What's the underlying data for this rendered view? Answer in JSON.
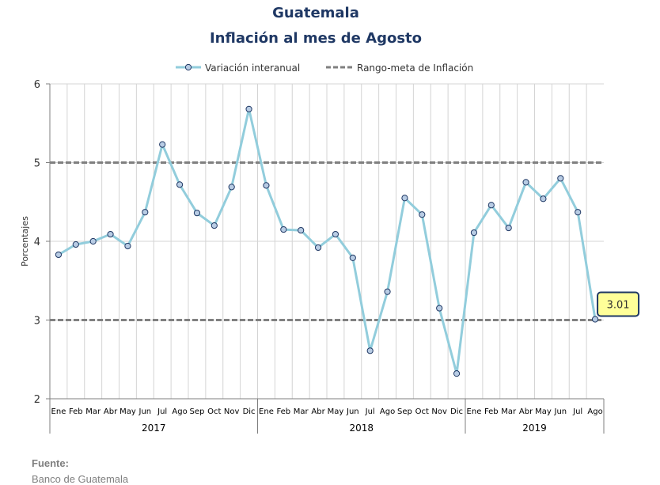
{
  "chart_data": {
    "type": "line",
    "title": "Guatemala",
    "subtitle": "Inflación al mes de Agosto",
    "ylabel": "Porcentajes",
    "xlabel": "",
    "ylim": [
      2,
      6
    ],
    "yticks": [
      "2",
      "3",
      "4",
      "5",
      "6"
    ],
    "grid": true,
    "legend_position": "top",
    "categories": [
      "Ene",
      "Feb",
      "Mar",
      "Abr",
      "May",
      "Jun",
      "Jul",
      "Ago",
      "Sep",
      "Oct",
      "Nov",
      "Dic",
      "Ene",
      "Feb",
      "Mar",
      "Abr",
      "May",
      "Jun",
      "Jul",
      "Ago",
      "Sep",
      "Oct",
      "Nov",
      "Dic",
      "Ene",
      "Feb",
      "Mar",
      "Abr",
      "May",
      "Jun",
      "Jul",
      "Ago"
    ],
    "years": [
      {
        "label": "2017",
        "count": 12
      },
      {
        "label": "2018",
        "count": 12
      },
      {
        "label": "2019",
        "count": 8
      }
    ],
    "series": [
      {
        "name": "Variación interanual",
        "color": "#92cddc",
        "marker_fill": "#b8cce4",
        "marker_stroke": "#1f3864",
        "values": [
          3.83,
          3.96,
          4.0,
          4.09,
          3.94,
          4.37,
          5.23,
          4.72,
          4.36,
          4.2,
          4.69,
          5.68,
          4.71,
          4.15,
          4.14,
          3.92,
          4.09,
          3.79,
          2.61,
          3.36,
          4.55,
          4.34,
          3.15,
          2.32,
          4.11,
          4.46,
          4.17,
          4.75,
          4.54,
          4.8,
          4.37,
          3.01
        ]
      }
    ],
    "reference_lines": [
      {
        "name": "Rango-meta de Inflación",
        "values": [
          3,
          5
        ],
        "color": "#808080",
        "style": "dashed"
      }
    ],
    "callout": {
      "index": 31,
      "text": "3.01",
      "fill": "#ffff99",
      "border": "#1f3864"
    }
  },
  "source": {
    "label": "Fuente:",
    "value": "Banco de Guatemala"
  }
}
